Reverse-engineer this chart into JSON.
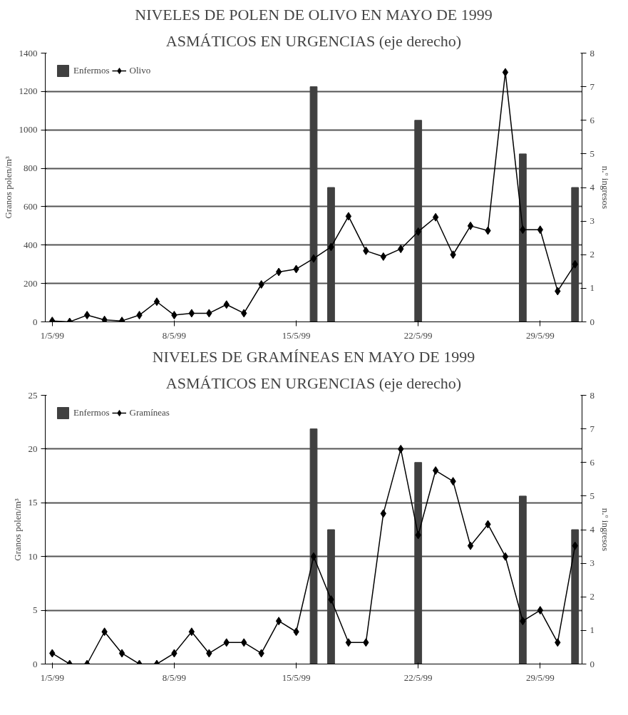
{
  "chart_data": [
    {
      "type": "line",
      "title": "NIVELES DE POLEN DE OLIVO EN MAYO DE 1999",
      "subtitle": "ASMÁTICOS EN URGENCIAS (eje derecho)",
      "ylabel": "Granos polen/m³",
      "y2label": "n.º ingresos",
      "categories": [
        "1/5/99",
        null,
        null,
        null,
        null,
        null,
        null,
        "8/5/99",
        null,
        null,
        null,
        null,
        null,
        null,
        "15/5/99",
        null,
        null,
        null,
        null,
        null,
        null,
        "22/5/99",
        null,
        null,
        null,
        null,
        null,
        null,
        "29/5/99",
        null,
        null
      ],
      "series": [
        {
          "name": "Enfermos",
          "type": "bar",
          "axis": "y2",
          "color": "#404040",
          "values": [
            null,
            null,
            null,
            null,
            null,
            null,
            null,
            null,
            null,
            null,
            null,
            null,
            null,
            null,
            null,
            7,
            4,
            null,
            null,
            null,
            null,
            6,
            null,
            null,
            null,
            null,
            null,
            5,
            null,
            null,
            4
          ]
        },
        {
          "name": "Olivo",
          "type": "line",
          "color": "#000000",
          "values": [
            5,
            0,
            35,
            10,
            5,
            35,
            105,
            35,
            45,
            45,
            90,
            45,
            195,
            260,
            275,
            330,
            390,
            550,
            370,
            340,
            380,
            470,
            545,
            350,
            500,
            475,
            1300,
            480,
            480,
            160,
            300
          ]
        }
      ],
      "ylim": [
        0,
        1400
      ],
      "yticks": [
        0,
        200,
        400,
        600,
        800,
        1000,
        1200,
        1400
      ],
      "y2lim": [
        0,
        8
      ],
      "y2ticks": [
        0,
        1,
        2,
        3,
        4,
        5,
        6,
        7,
        8
      ],
      "grid": "y",
      "legend": "top left",
      "marker": "diamond",
      "line_style": "solid"
    },
    {
      "type": "line",
      "title": "NIVELES DE GRAMÍNEAS EN MAYO DE 1999",
      "subtitle": "ASMÁTICOS EN URGENCIAS (eje derecho)",
      "ylabel": "Granos polen/m³",
      "y2label": "n.º ingresos",
      "categories": [
        "1/5/99",
        null,
        null,
        null,
        null,
        null,
        null,
        "8/5/99",
        null,
        null,
        null,
        null,
        null,
        null,
        "15/5/99",
        null,
        null,
        null,
        null,
        null,
        null,
        "22/5/99",
        null,
        null,
        null,
        null,
        null,
        null,
        "29/5/99",
        null,
        null
      ],
      "series": [
        {
          "name": "Enfermos",
          "type": "bar",
          "axis": "y2",
          "color": "#404040",
          "values": [
            null,
            null,
            null,
            null,
            null,
            null,
            null,
            null,
            null,
            null,
            null,
            null,
            null,
            null,
            null,
            7,
            4,
            null,
            null,
            null,
            null,
            6,
            null,
            null,
            null,
            null,
            null,
            5,
            null,
            null,
            4
          ]
        },
        {
          "name": "Gramíneas",
          "type": "line",
          "color": "#000000",
          "values": [
            1,
            0,
            0,
            3,
            1,
            0,
            0,
            1,
            3,
            1,
            2,
            2,
            1,
            4,
            3,
            10,
            6,
            2,
            2,
            14,
            20,
            12,
            18,
            17,
            11,
            13,
            10,
            4,
            5,
            2,
            11
          ]
        }
      ],
      "ylim": [
        0,
        25
      ],
      "yticks": [
        0,
        5,
        10,
        15,
        20,
        25
      ],
      "y2lim": [
        0,
        8
      ],
      "y2ticks": [
        0,
        1,
        2,
        3,
        4,
        5,
        6,
        7,
        8
      ],
      "grid": "y",
      "legend": "top left",
      "marker": "diamond",
      "line_style": "solid"
    }
  ]
}
